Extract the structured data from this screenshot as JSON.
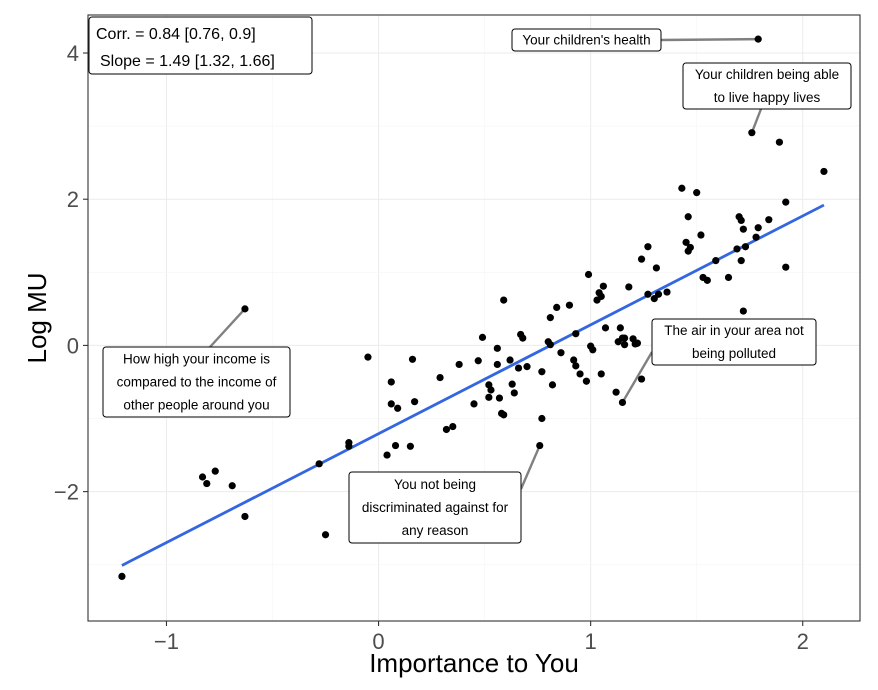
{
  "chart_data": {
    "type": "scatter",
    "xlabel": "Importance to You",
    "ylabel": "Log MU",
    "xlim": [
      -1.37,
      2.27
    ],
    "ylim": [
      -3.77,
      4.52
    ],
    "x_ticks": [
      -1,
      0,
      1,
      2
    ],
    "x_tick_labels": [
      "−1",
      "0",
      "1",
      "2"
    ],
    "y_ticks": [
      -2,
      0,
      2,
      4
    ],
    "y_tick_labels": [
      "−2",
      "0",
      "2",
      "4"
    ],
    "grid": true,
    "stats": {
      "line1": "Corr. = 0.84 [0.76, 0.9]",
      "line2": "Slope = 1.49 [1.32, 1.66]"
    },
    "fit_line": {
      "x": [
        -1.21,
        2.1
      ],
      "y": [
        -3.01,
        1.92
      ]
    },
    "points": [
      {
        "x": -1.21,
        "y": -3.16
      },
      {
        "x": -0.83,
        "y": -1.8
      },
      {
        "x": -0.81,
        "y": -1.89
      },
      {
        "x": -0.77,
        "y": -1.72
      },
      {
        "x": -0.69,
        "y": -1.92
      },
      {
        "x": -0.63,
        "y": -2.34
      },
      {
        "x": -0.63,
        "y": 0.5
      },
      {
        "x": -0.28,
        "y": -1.62
      },
      {
        "x": -0.25,
        "y": -2.59
      },
      {
        "x": -0.14,
        "y": -1.33
      },
      {
        "x": -0.14,
        "y": -1.38
      },
      {
        "x": -0.05,
        "y": -0.16
      },
      {
        "x": 0.04,
        "y": -1.5
      },
      {
        "x": 0.06,
        "y": -0.5
      },
      {
        "x": 0.06,
        "y": -0.8
      },
      {
        "x": 0.08,
        "y": -1.37
      },
      {
        "x": 0.09,
        "y": -0.86
      },
      {
        "x": 0.15,
        "y": -1.38
      },
      {
        "x": 0.16,
        "y": -0.19
      },
      {
        "x": 0.17,
        "y": -0.77
      },
      {
        "x": 0.29,
        "y": -0.44
      },
      {
        "x": 0.32,
        "y": -1.15
      },
      {
        "x": 0.35,
        "y": -1.11
      },
      {
        "x": 0.38,
        "y": -0.26
      },
      {
        "x": 0.45,
        "y": -0.8
      },
      {
        "x": 0.47,
        "y": -0.21
      },
      {
        "x": 0.49,
        "y": 0.11
      },
      {
        "x": 0.52,
        "y": -0.54
      },
      {
        "x": 0.52,
        "y": -0.71
      },
      {
        "x": 0.53,
        "y": -0.61
      },
      {
        "x": 0.56,
        "y": -0.26
      },
      {
        "x": 0.56,
        "y": -0.04
      },
      {
        "x": 0.57,
        "y": -0.72
      },
      {
        "x": 0.58,
        "y": -0.93
      },
      {
        "x": 0.59,
        "y": -0.95
      },
      {
        "x": 0.59,
        "y": 0.62
      },
      {
        "x": 0.62,
        "y": -0.2
      },
      {
        "x": 0.63,
        "y": -0.53
      },
      {
        "x": 0.64,
        "y": -0.65
      },
      {
        "x": 0.66,
        "y": -0.31
      },
      {
        "x": 0.67,
        "y": 0.15
      },
      {
        "x": 0.68,
        "y": 0.1
      },
      {
        "x": 0.7,
        "y": -0.29
      },
      {
        "x": 0.76,
        "y": -1.37
      },
      {
        "x": 0.77,
        "y": -1.0
      },
      {
        "x": 0.77,
        "y": -0.36
      },
      {
        "x": 0.8,
        "y": 0.05
      },
      {
        "x": 0.81,
        "y": 0.01
      },
      {
        "x": 0.81,
        "y": 0.38
      },
      {
        "x": 0.82,
        "y": -0.54
      },
      {
        "x": 0.84,
        "y": 0.52
      },
      {
        "x": 0.86,
        "y": -0.1
      },
      {
        "x": 0.9,
        "y": 0.55
      },
      {
        "x": 0.92,
        "y": -0.2
      },
      {
        "x": 0.93,
        "y": 0.16
      },
      {
        "x": 0.93,
        "y": -0.28
      },
      {
        "x": 0.95,
        "y": -0.39
      },
      {
        "x": 0.98,
        "y": -0.49
      },
      {
        "x": 0.99,
        "y": 0.97
      },
      {
        "x": 1.0,
        "y": -0.01
      },
      {
        "x": 1.01,
        "y": -0.06
      },
      {
        "x": 1.03,
        "y": 0.62
      },
      {
        "x": 1.04,
        "y": 0.72
      },
      {
        "x": 1.05,
        "y": -0.39
      },
      {
        "x": 1.05,
        "y": 0.67
      },
      {
        "x": 1.06,
        "y": 0.81
      },
      {
        "x": 1.07,
        "y": 0.24
      },
      {
        "x": 1.12,
        "y": -0.64
      },
      {
        "x": 1.13,
        "y": 0.05
      },
      {
        "x": 1.14,
        "y": 0.24
      },
      {
        "x": 1.15,
        "y": 0.1
      },
      {
        "x": 1.15,
        "y": -0.78
      },
      {
        "x": 1.16,
        "y": 0.1
      },
      {
        "x": 1.16,
        "y": 0.01
      },
      {
        "x": 1.18,
        "y": 0.8
      },
      {
        "x": 1.2,
        "y": 0.09
      },
      {
        "x": 1.21,
        "y": 0.02
      },
      {
        "x": 1.22,
        "y": 0.03
      },
      {
        "x": 1.22,
        "y": 0.03
      },
      {
        "x": 1.24,
        "y": -0.46
      },
      {
        "x": 1.24,
        "y": 1.18
      },
      {
        "x": 1.27,
        "y": 0.7
      },
      {
        "x": 1.27,
        "y": 1.35
      },
      {
        "x": 1.3,
        "y": 0.64
      },
      {
        "x": 1.31,
        "y": 1.06
      },
      {
        "x": 1.32,
        "y": 0.7
      },
      {
        "x": 1.36,
        "y": 0.73
      },
      {
        "x": 1.43,
        "y": 2.15
      },
      {
        "x": 1.45,
        "y": 1.41
      },
      {
        "x": 1.46,
        "y": 1.29
      },
      {
        "x": 1.46,
        "y": 1.76
      },
      {
        "x": 1.47,
        "y": 1.34
      },
      {
        "x": 1.5,
        "y": 2.09
      },
      {
        "x": 1.52,
        "y": 1.51
      },
      {
        "x": 1.53,
        "y": 0.93
      },
      {
        "x": 1.55,
        "y": 0.89
      },
      {
        "x": 1.59,
        "y": 1.16
      },
      {
        "x": 1.65,
        "y": 0.93
      },
      {
        "x": 1.69,
        "y": 1.32
      },
      {
        "x": 1.7,
        "y": 1.76
      },
      {
        "x": 1.71,
        "y": 1.71
      },
      {
        "x": 1.71,
        "y": 1.16
      },
      {
        "x": 1.72,
        "y": 1.59
      },
      {
        "x": 1.72,
        "y": 0.47
      },
      {
        "x": 1.73,
        "y": 1.35
      },
      {
        "x": 1.76,
        "y": 2.91
      },
      {
        "x": 1.78,
        "y": 1.48
      },
      {
        "x": 1.79,
        "y": 1.61
      },
      {
        "x": 1.84,
        "y": 1.72
      },
      {
        "x": 1.79,
        "y": 4.19
      },
      {
        "x": 1.89,
        "y": 2.78
      },
      {
        "x": 1.92,
        "y": 1.96
      },
      {
        "x": 1.92,
        "y": 1.07
      },
      {
        "x": 2.1,
        "y": 2.38
      }
    ],
    "annotations": [
      {
        "lines": [
          "Your children's health"
        ],
        "point": [
          1.79,
          4.19
        ]
      },
      {
        "lines": [
          "Your children being able",
          "to live happy lives"
        ],
        "point": [
          1.76,
          2.91
        ]
      },
      {
        "lines": [
          "The air in your area not",
          "being polluted"
        ],
        "point": [
          1.15,
          -0.78
        ]
      },
      {
        "lines": [
          "How high your income is",
          "compared to the income of",
          "other people around you"
        ],
        "point": [
          -0.63,
          0.5
        ]
      },
      {
        "lines": [
          "You not being",
          "discriminated against for",
          "any reason"
        ],
        "point": [
          0.76,
          -1.37
        ]
      }
    ]
  }
}
